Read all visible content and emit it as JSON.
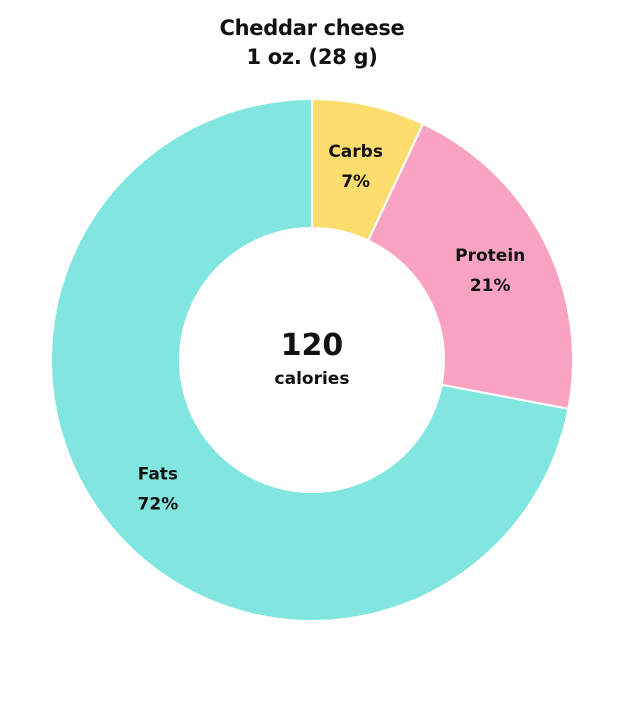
{
  "chart_data": {
    "type": "pie",
    "title": "Cheddar cheese",
    "subtitle": "1 oz. (28 g)",
    "center": {
      "value": "120",
      "unit": "calories"
    },
    "slices": [
      {
        "label": "Carbs",
        "percent_label": "7%",
        "value": 7,
        "color": "#FEDD6F"
      },
      {
        "label": "Protein",
        "percent_label": "21%",
        "value": 21,
        "color": "#F9A3C3"
      },
      {
        "label": "Fats",
        "percent_label": "72%",
        "value": 72,
        "color": "#82E6E0"
      }
    ]
  }
}
